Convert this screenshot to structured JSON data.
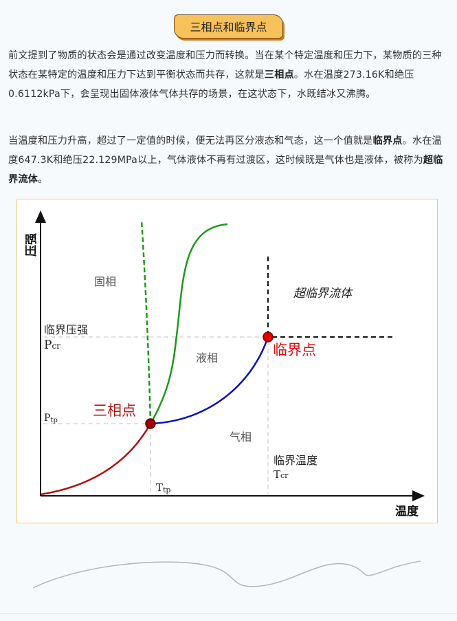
{
  "title": "三相点和临界点",
  "paragraph1": {
    "text_a": "前文提到了物质的状态会是通过改变温度和压力而转换。当在某个特定温度和压力下，某物质的三种状态在某特定的温度和压力下达到平衡状态而共存，这就是",
    "bold_a": "三相点",
    "text_b": "。水在温度273.16K和绝压0.6112kPa下，会呈现出固体液体气体共存的场景，在这状态下，水既结冰又沸腾。"
  },
  "paragraph2": {
    "text_a": "当温度和压力升高，超过了一定值的时候，便无法再区分液态和气态，这一个值就是",
    "bold_a": "临界点",
    "text_b": "。水在温度647.3K和绝压22.129MPa以上，气体液体不再有过渡区，这时候既是气体也是液体，被称为",
    "bold_b": "超临界流体",
    "text_c": "。"
  },
  "diagram": {
    "y_axis_label": "压强",
    "x_axis_label": "温度",
    "solid_label": "固相",
    "liquid_label": "液相",
    "gas_label": "气相",
    "supercritical_label": "超临界流体",
    "critical_pressure_label": "临界压强",
    "pcr": {
      "main": "P",
      "sub": "cr"
    },
    "ptp": {
      "main": "P",
      "sub": "tp"
    },
    "critical_temp_label": "临界温度",
    "tcr": {
      "main": "T",
      "sub": "cr"
    },
    "ttp": {
      "main": "T",
      "sub": "tp"
    },
    "triple_point_label": "三相点",
    "critical_point_label": "临界点",
    "colors": {
      "sublimation": "#b01010",
      "vaporization": "#0a12b0",
      "melting": "#1a9a1a",
      "point": "#c00000",
      "critical_label": "#e01010",
      "triple_label": "#b01818"
    }
  }
}
